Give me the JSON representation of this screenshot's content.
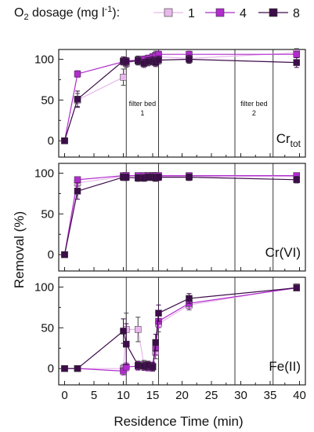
{
  "legend": {
    "title_main": "O",
    "title_sub": "2",
    "title_rest": " dosage (mg l",
    "title_sup": "-1",
    "title_end": "):",
    "entries": [
      {
        "label": "1",
        "color": "#e8b8ec"
      },
      {
        "label": "4",
        "color": "#b02ccc"
      },
      {
        "label": "8",
        "color": "#3d0d4a"
      }
    ]
  },
  "y_axis_label": "Removal (%)",
  "x_axis_label": "Residence Time (min)",
  "annotations": {
    "filter_bed_1": [
      "filter bed",
      "1"
    ],
    "filter_bed_2": [
      "filter bed",
      "2"
    ]
  },
  "chart_data": [
    {
      "type": "line",
      "panel_label_main": "Cr",
      "panel_label_sub": "tot",
      "xlim": [
        -1,
        41
      ],
      "ylim": [
        -20,
        112
      ],
      "x_ticks": [
        "0",
        "5",
        "10",
        "15",
        "20",
        "25",
        "30",
        "35",
        "40"
      ],
      "y_ticks": [
        "0",
        "50",
        "100"
      ],
      "vertical_lines": [
        10.5,
        16,
        29,
        35.5
      ],
      "series": [
        {
          "name": "1",
          "color": "#e8b8ec",
          "x": [
            0,
            2.2,
            10,
            10.5,
            12.5,
            13.5,
            14.2,
            15,
            15.5,
            16,
            21.2,
            39.5
          ],
          "y": [
            0,
            50,
            78,
            95,
            99,
            98,
            100,
            99,
            105,
            103,
            101,
            108
          ],
          "err": [
            0,
            8,
            10,
            5,
            5,
            5,
            5,
            5,
            5,
            5,
            5,
            5
          ]
        },
        {
          "name": "4",
          "color": "#b02ccc",
          "x": [
            0,
            2.2,
            10,
            10.5,
            12.5,
            13.5,
            14.2,
            15,
            15.5,
            16,
            21.2,
            39.5
          ],
          "y": [
            0,
            82,
            97,
            98,
            99,
            100,
            101,
            103,
            104,
            106,
            106,
            106
          ],
          "err": [
            0,
            4,
            4,
            4,
            4,
            4,
            4,
            4,
            4,
            4,
            4,
            4
          ]
        },
        {
          "name": "8",
          "color": "#3d0d4a",
          "x": [
            0,
            2.2,
            10,
            10.5,
            12.5,
            13.5,
            14.2,
            15,
            15.5,
            16,
            21.2,
            39.5
          ],
          "y": [
            0,
            51,
            98,
            97,
            98,
            95,
            97,
            98,
            96,
            99,
            100,
            96
          ],
          "err": [
            0,
            10,
            5,
            5,
            5,
            5,
            5,
            5,
            5,
            5,
            5,
            6
          ]
        }
      ]
    },
    {
      "type": "line",
      "panel_label_main": "Cr(VI)",
      "panel_label_sub": "",
      "xlim": [
        -1,
        41
      ],
      "ylim": [
        -20,
        112
      ],
      "x_ticks": [
        "0",
        "5",
        "10",
        "15",
        "20",
        "25",
        "30",
        "35",
        "40"
      ],
      "y_ticks": [
        "0",
        "50",
        "100"
      ],
      "vertical_lines": [
        10.5,
        16,
        29,
        35.5
      ],
      "series": [
        {
          "name": "1",
          "color": "#e8b8ec",
          "x": [
            0,
            2.2,
            10,
            10.5,
            12.5,
            13.5,
            14.2,
            15,
            15.5,
            16,
            21.2,
            39.5
          ],
          "y": [
            0,
            88,
            96,
            97,
            96,
            96,
            97,
            97,
            97,
            96,
            96,
            96
          ],
          "err": [
            0,
            4,
            3,
            3,
            3,
            3,
            3,
            3,
            3,
            3,
            3,
            3
          ]
        },
        {
          "name": "4",
          "color": "#b02ccc",
          "x": [
            0,
            2.2,
            10,
            10.5,
            12.5,
            13.5,
            14.2,
            15,
            15.5,
            16,
            21.2,
            39.5
          ],
          "y": [
            0,
            92,
            97,
            97,
            97,
            97,
            97,
            97,
            97,
            97,
            97,
            97
          ],
          "err": [
            0,
            3,
            3,
            3,
            3,
            3,
            3,
            3,
            3,
            3,
            3,
            3
          ]
        },
        {
          "name": "8",
          "color": "#3d0d4a",
          "x": [
            0,
            2.2,
            10,
            10.5,
            12.5,
            13.5,
            14.2,
            15,
            15.5,
            16,
            21.2,
            39.5
          ],
          "y": [
            0,
            78,
            95,
            95,
            94,
            94,
            95,
            95,
            94,
            95,
            95,
            92
          ],
          "err": [
            0,
            10,
            4,
            4,
            4,
            4,
            4,
            4,
            4,
            4,
            4,
            4
          ]
        }
      ]
    },
    {
      "type": "line",
      "panel_label_main": "Fe(II)",
      "panel_label_sub": "",
      "xlim": [
        -1,
        41
      ],
      "ylim": [
        -20,
        112
      ],
      "x_ticks": [
        "0",
        "5",
        "10",
        "15",
        "20",
        "25",
        "30",
        "35",
        "40"
      ],
      "y_ticks": [
        "0",
        "50",
        "100"
      ],
      "vertical_lines": [
        10.5,
        16,
        29,
        35.5
      ],
      "series": [
        {
          "name": "1",
          "color": "#e8b8ec",
          "x": [
            0,
            2.2,
            10,
            10.5,
            12.5,
            13.5,
            14.2,
            15,
            15.5,
            16,
            21.2,
            39.5
          ],
          "y": [
            0,
            0,
            0,
            48,
            48,
            5,
            3,
            2,
            20,
            55,
            78,
            100
          ],
          "err": [
            0,
            3,
            5,
            20,
            15,
            5,
            5,
            5,
            8,
            10,
            6,
            4
          ]
        },
        {
          "name": "4",
          "color": "#b02ccc",
          "x": [
            0,
            2.2,
            10,
            10.5,
            12.5,
            13.5,
            14.2,
            15,
            15.5,
            16,
            21.2,
            39.5
          ],
          "y": [
            0,
            0,
            -3,
            2,
            3,
            3,
            2,
            3,
            25,
            58,
            80,
            99
          ],
          "err": [
            0,
            3,
            5,
            5,
            5,
            5,
            5,
            5,
            8,
            8,
            6,
            3
          ]
        },
        {
          "name": "8",
          "color": "#3d0d4a",
          "x": [
            0,
            2.2,
            10,
            10.5,
            12.5,
            13.5,
            14.2,
            15,
            15.5,
            16,
            21.2,
            39.5
          ],
          "y": [
            0,
            0,
            46,
            30,
            4,
            3,
            4,
            2,
            32,
            68,
            86,
            99
          ],
          "err": [
            0,
            3,
            15,
            25,
            5,
            5,
            5,
            5,
            10,
            10,
            6,
            3
          ]
        }
      ]
    }
  ]
}
